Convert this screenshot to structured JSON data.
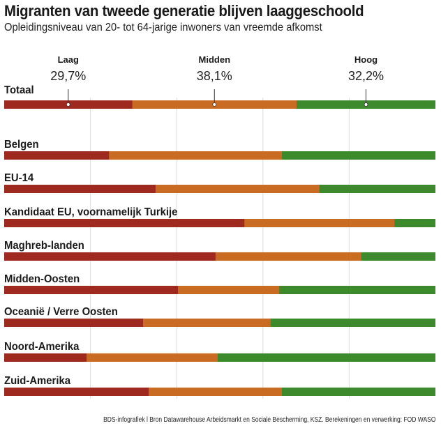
{
  "title": "Migranten van tweede generatie blijven laaggeschoold",
  "subtitle": "Opleidingsniveau van 20- tot 64-jarige inwoners van vreemde afkomst",
  "source": "BDS-infografiek l Bron Datawarehouse Arbeidsmarkt en Sociale Bescherming, KSZ. Berekeningen en verwerking: FOD WASO",
  "chart_data": {
    "type": "bar",
    "orientation": "horizontal",
    "stacked": true,
    "normalized": true,
    "xlim": [
      0,
      100
    ],
    "grid": true,
    "gridlines": [
      20,
      40,
      60,
      80
    ],
    "categories": [
      "Totaal",
      "Belgen",
      "EU-14",
      "Kandidaat EU, voornamelijk Turkije",
      "Maghreb-landen",
      "Midden-Oosten",
      "Oceanië / Verre Oosten",
      "Noord-Amerika",
      "Zuid-Amerika"
    ],
    "series": [
      {
        "name": "Laag",
        "color": "#9e2a1f",
        "values": [
          29.7,
          24.3,
          35.1,
          55.7,
          49.0,
          40.3,
          32.2,
          19.1,
          33.5
        ]
      },
      {
        "name": "Midden",
        "color": "#c96b22",
        "values": [
          38.1,
          40.1,
          38.0,
          34.8,
          33.8,
          23.5,
          29.6,
          30.4,
          30.9
        ]
      },
      {
        "name": "Hoog",
        "color": "#3d8a2c",
        "values": [
          32.2,
          35.6,
          26.9,
          9.5,
          17.2,
          36.2,
          38.2,
          50.5,
          35.6
        ]
      }
    ],
    "annotations": [
      {
        "series": "Laag",
        "label": "Laag",
        "value_label": "29,7%"
      },
      {
        "series": "Midden",
        "label": "Midden",
        "value_label": "38,1%"
      },
      {
        "series": "Hoog",
        "label": "Hoog",
        "value_label": "32,2%"
      }
    ]
  }
}
